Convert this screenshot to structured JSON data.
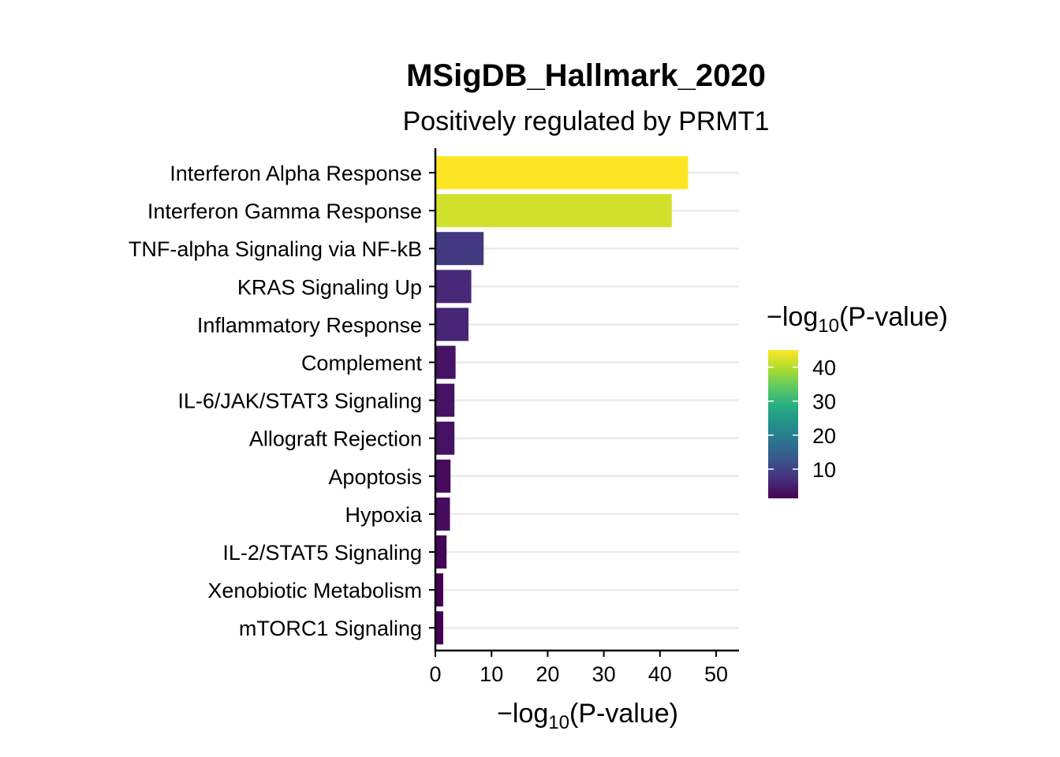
{
  "chart_data": {
    "type": "bar",
    "orientation": "horizontal",
    "title": "MSigDB_Hallmark_2020",
    "subtitle": "Positively regulated by PRMT1",
    "xlabel": {
      "prefix": "−log",
      "sub": "10",
      "suffix": "(P-value)"
    },
    "xlim": [
      0,
      54
    ],
    "xticks": [
      0,
      10,
      20,
      30,
      40,
      50
    ],
    "grid": "horizontal major lines",
    "categories": [
      "Interferon Alpha Response",
      "Interferon Gamma Response",
      "TNF-alpha Signaling via NF-kB",
      "KRAS Signaling Up",
      "Inflammatory Response",
      "Complement",
      "IL-6/JAK/STAT3 Signaling",
      "Allograft Rejection",
      "Apoptosis",
      "Hypoxia",
      "IL-2/STAT5 Signaling",
      "Xenobiotic Metabolism",
      "mTORC1 Signaling"
    ],
    "values": [
      45.0,
      42.1,
      8.6,
      6.4,
      5.9,
      3.6,
      3.4,
      3.4,
      2.7,
      2.6,
      2.0,
      1.4,
      1.4
    ],
    "colorbar": {
      "title": {
        "prefix": "−log",
        "sub": "10",
        "suffix": "(P-value)"
      },
      "range": [
        1.4,
        45.0
      ],
      "ticks": [
        10,
        20,
        30,
        40
      ],
      "colormap": "viridis",
      "placement": "right"
    }
  }
}
